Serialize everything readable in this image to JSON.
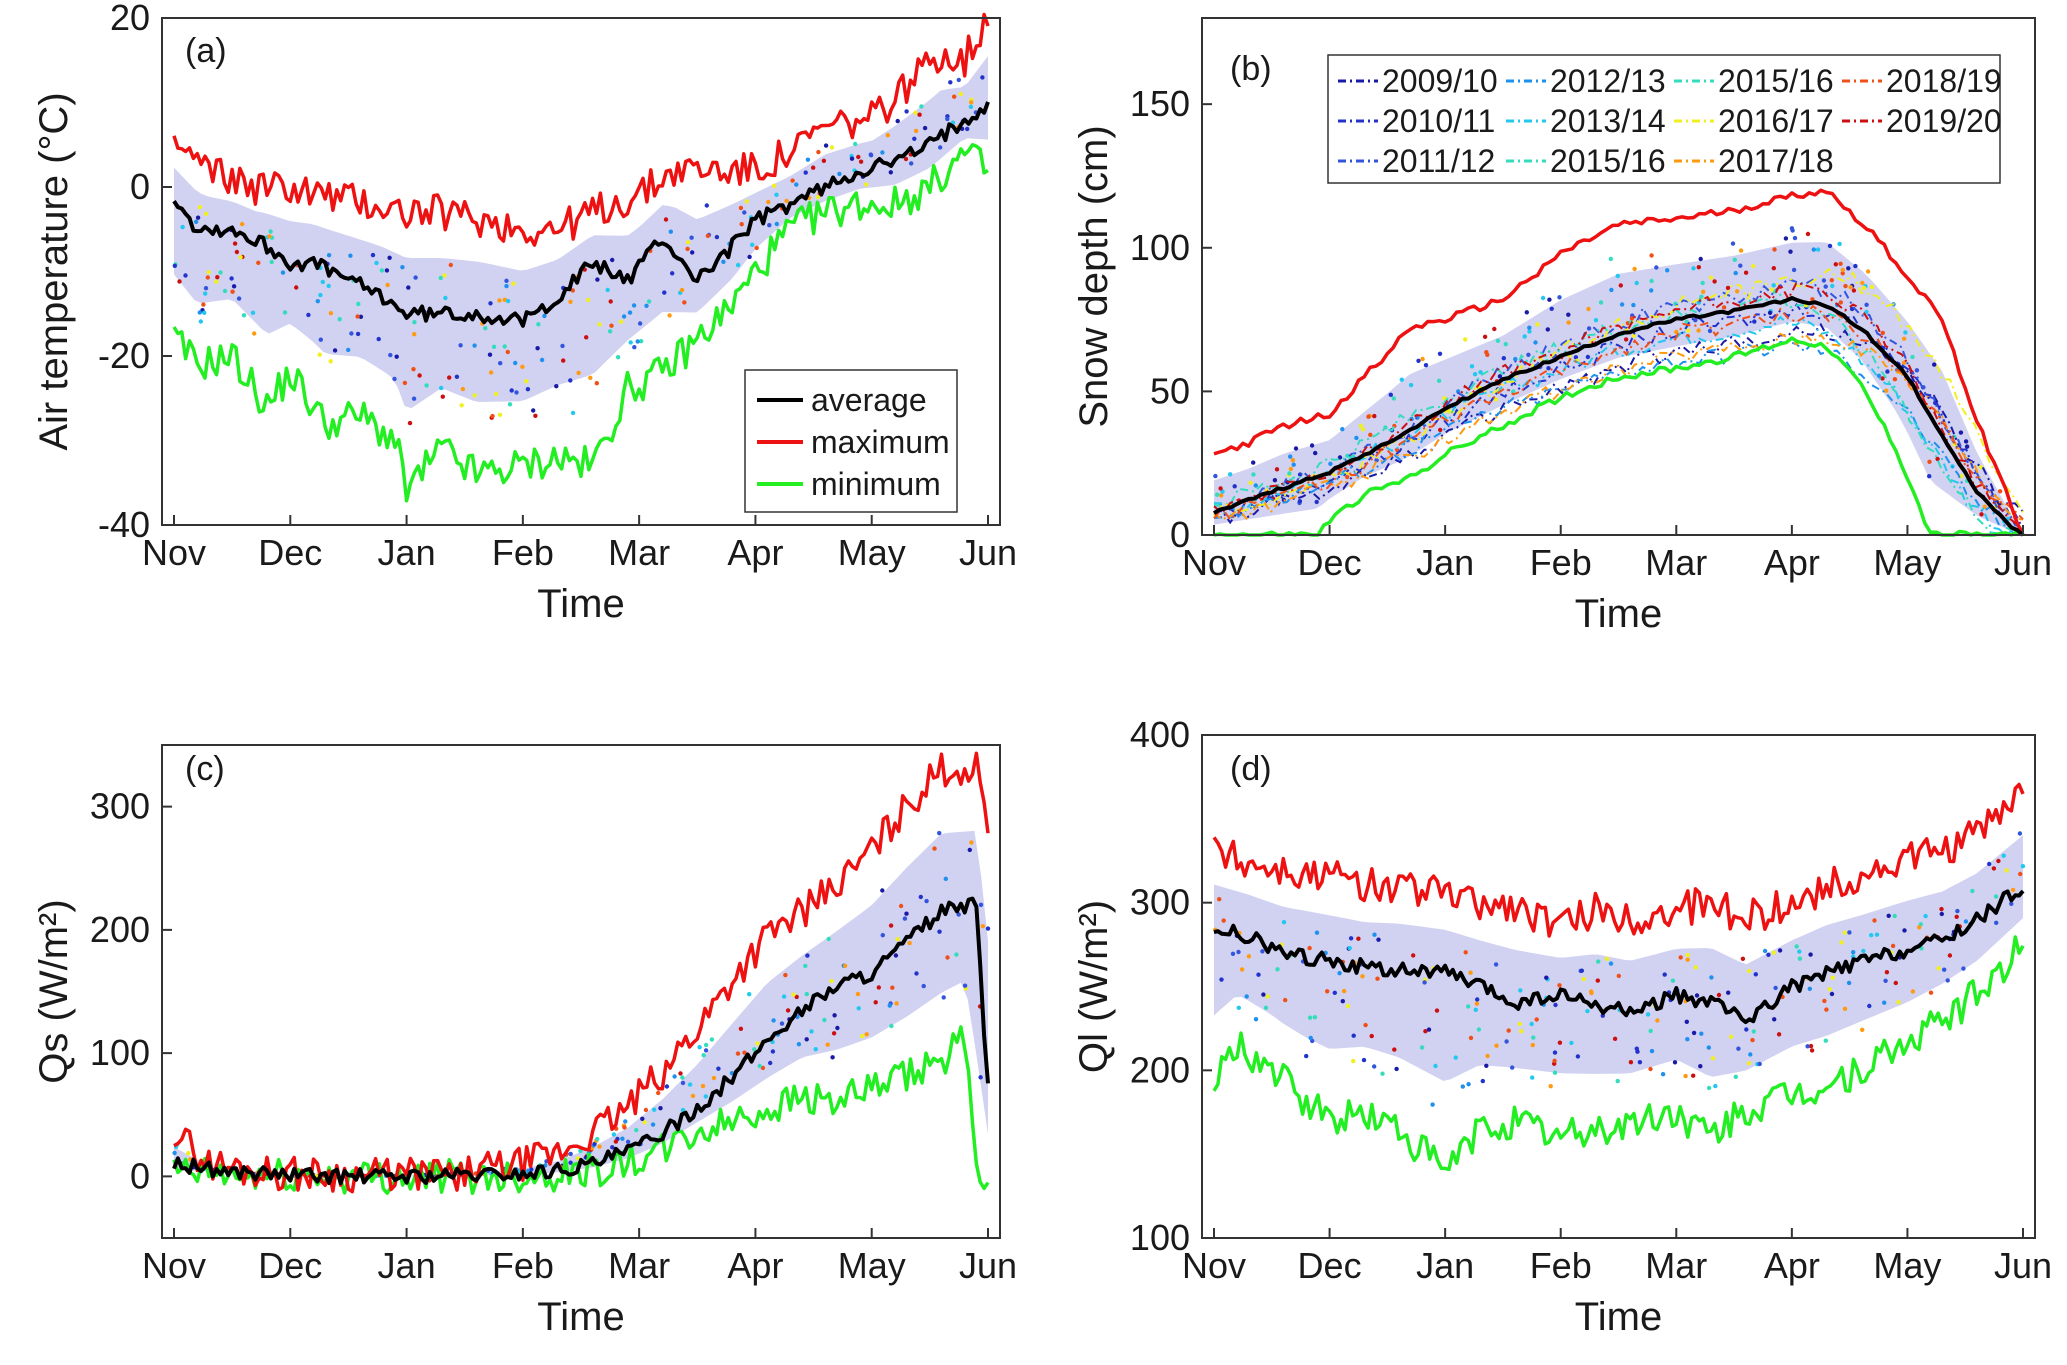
{
  "colors": {
    "average": "#000000",
    "maximum": "#ee1111",
    "minimum": "#22ee22",
    "band": "#9a9ae0",
    "years": [
      "#1a1aa8",
      "#2233cc",
      "#3355dd",
      "#1e90ee",
      "#22c8ee",
      "#33ddbb",
      "#f0f020",
      "#ff9a10",
      "#f05018",
      "#cc1010"
    ]
  },
  "chart_data": [
    {
      "id": "a",
      "type": "line",
      "panel_label": "(a)",
      "xlabel": "Time",
      "ylabel": "Air temperature (°C)",
      "xticks": [
        "Nov",
        "Dec",
        "Jan",
        "Feb",
        "Mar",
        "Apr",
        "May",
        "Jun"
      ],
      "ylim": [
        -40,
        20
      ],
      "yticks": [
        "20",
        "0",
        "-20",
        "-40"
      ],
      "legend_position": "lower-right",
      "legend": [
        "average",
        "maximum",
        "minimum"
      ],
      "series": [
        {
          "name": "average",
          "x": [
            0,
            0.2,
            0.5,
            0.8,
            1,
            1.2,
            1.5,
            1.8,
            2,
            2.3,
            2.6,
            3,
            3.3,
            3.6,
            3.9,
            4.2,
            4.5,
            4.8,
            5,
            5.3,
            5.6,
            5.9,
            6.2,
            6.5,
            6.8,
            7
          ],
          "values": [
            -1,
            -5,
            -5,
            -7,
            -9,
            -9,
            -11,
            -13,
            -15,
            -15,
            -15,
            -16,
            -13,
            -9,
            -11,
            -6,
            -11,
            -7,
            -4,
            -2,
            0,
            2,
            3,
            5,
            8,
            10
          ]
        },
        {
          "name": "maximum",
          "x": [
            0,
            0.3,
            0.7,
            1,
            1.3,
            1.7,
            2,
            2.3,
            2.7,
            3,
            3.3,
            3.6,
            4,
            4.3,
            4.7,
            5,
            5.3,
            5.6,
            6,
            6.3,
            6.6,
            6.8,
            7
          ],
          "values": [
            5,
            2,
            0,
            0,
            -1,
            -2,
            -3,
            -3,
            -4,
            -5,
            -5,
            -3,
            -1,
            2,
            2,
            2,
            4,
            7,
            8,
            12,
            16,
            15,
            20
          ]
        },
        {
          "name": "minimum",
          "x": [
            0,
            0.2,
            0.5,
            0.8,
            1,
            1.3,
            1.6,
            1.9,
            2,
            2.3,
            2.6,
            3,
            3.3,
            3.6,
            3.9,
            4.2,
            4.5,
            4.8,
            5,
            5.3,
            5.6,
            5.9,
            6.2,
            6.5,
            6.8,
            7
          ],
          "values": [
            -18,
            -21,
            -20,
            -26,
            -22,
            -28,
            -27,
            -30,
            -36,
            -31,
            -34,
            -33,
            -32,
            -33,
            -24,
            -22,
            -18,
            -14,
            -10,
            -5,
            -3,
            -2,
            -2,
            0,
            4,
            2
          ]
        }
      ]
    },
    {
      "id": "b",
      "type": "line",
      "panel_label": "(b)",
      "xlabel": "Time",
      "ylabel": "Snow depth (cm)",
      "xticks": [
        "Nov",
        "Dec",
        "Jan",
        "Feb",
        "Mar",
        "Apr",
        "May",
        "Jun"
      ],
      "ylim": [
        0,
        180
      ],
      "yticks": [
        "150",
        "100",
        "50",
        "0"
      ],
      "legend_position": "top-right",
      "legend": [
        "2009/10",
        "2012/13",
        "2015/16",
        "2018/19",
        "2010/11",
        "2013/14",
        "2016/17",
        "2019/20",
        "2011/12",
        "2015/16",
        "2017/18"
      ],
      "series": [
        {
          "name": "average",
          "x": [
            0,
            0.5,
            1,
            1.5,
            2,
            2.5,
            3,
            3.5,
            4,
            4.5,
            5,
            5.3,
            5.6,
            6,
            6.3,
            6.6,
            6.9,
            7
          ],
          "values": [
            8,
            15,
            22,
            32,
            44,
            54,
            62,
            70,
            75,
            78,
            82,
            80,
            72,
            55,
            35,
            15,
            3,
            0
          ]
        },
        {
          "name": "maximum",
          "x": [
            0,
            0.3,
            0.6,
            1,
            1.3,
            1.7,
            2,
            2.5,
            3,
            3.5,
            4,
            4.5,
            5,
            5.3,
            5.7,
            6,
            6.3,
            6.6,
            7
          ],
          "values": [
            28,
            32,
            38,
            42,
            55,
            72,
            75,
            82,
            98,
            108,
            110,
            113,
            118,
            120,
            105,
            90,
            75,
            40,
            0
          ]
        },
        {
          "name": "minimum",
          "x": [
            0,
            0.5,
            0.9,
            1,
            1.3,
            1.7,
            2,
            2.5,
            3,
            3.5,
            4,
            4.5,
            5,
            5.3,
            5.6,
            5.9,
            6.2,
            7
          ],
          "values": [
            0,
            0,
            0,
            5,
            14,
            20,
            28,
            38,
            48,
            55,
            58,
            62,
            68,
            66,
            52,
            30,
            0,
            0
          ]
        }
      ]
    },
    {
      "id": "c",
      "type": "line",
      "panel_label": "(c)",
      "xlabel": "Time",
      "ylabel": "Qs (W/m²)",
      "xticks": [
        "Nov",
        "Dec",
        "Jan",
        "Feb",
        "Mar",
        "Apr",
        "May",
        "Jun"
      ],
      "ylim": [
        -50,
        350
      ],
      "yticks": [
        "300",
        "200",
        "100",
        "0"
      ],
      "series": [
        {
          "name": "average",
          "x": [
            0,
            0.5,
            1,
            1.5,
            2,
            2.5,
            3,
            3.3,
            3.6,
            3.9,
            4.2,
            4.5,
            4.8,
            5.1,
            5.4,
            5.7,
            6,
            6.3,
            6.6,
            6.9,
            7
          ],
          "values": [
            10,
            4,
            1,
            0,
            0,
            1,
            2,
            5,
            10,
            20,
            35,
            55,
            80,
            110,
            135,
            155,
            165,
            190,
            215,
            220,
            70
          ]
        },
        {
          "name": "maximum",
          "x": [
            0,
            0.3,
            0.7,
            1,
            1.5,
            2,
            2.5,
            3,
            3.3,
            3.6,
            3.9,
            4.2,
            4.5,
            4.8,
            5.1,
            5.4,
            5.7,
            6,
            6.3,
            6.6,
            6.9,
            7
          ],
          "values": [
            35,
            10,
            4,
            2,
            1,
            1,
            3,
            10,
            18,
            35,
            55,
            85,
            120,
            160,
            195,
            215,
            235,
            265,
            300,
            330,
            330,
            290
          ]
        },
        {
          "name": "minimum",
          "x": [
            0,
            0.5,
            1,
            1.5,
            2,
            2.5,
            3,
            3.3,
            3.6,
            3.9,
            4.2,
            4.5,
            4.8,
            5.1,
            5.4,
            5.7,
            6,
            6.3,
            6.6,
            6.8,
            6.9,
            7
          ],
          "values": [
            3,
            1,
            0,
            0,
            0,
            0,
            1,
            2,
            5,
            10,
            20,
            35,
            45,
            55,
            65,
            60,
            70,
            80,
            95,
            110,
            0,
            5
          ]
        }
      ]
    },
    {
      "id": "d",
      "type": "line",
      "panel_label": "(d)",
      "xlabel": "Time",
      "ylabel": "Ql (W/m²)",
      "xticks": [
        "Nov",
        "Dec",
        "Jan",
        "Feb",
        "Mar",
        "Apr",
        "May",
        "Jun"
      ],
      "ylim": [
        100,
        400
      ],
      "yticks": [
        "400",
        "300",
        "200",
        "100"
      ],
      "series": [
        {
          "name": "average",
          "x": [
            0,
            0.3,
            0.6,
            1,
            1.3,
            1.6,
            2,
            2.3,
            2.6,
            3,
            3.3,
            3.6,
            4,
            4.3,
            4.6,
            5,
            5.3,
            5.6,
            6,
            6.3,
            6.6,
            7
          ],
          "values": [
            285,
            280,
            270,
            265,
            262,
            260,
            258,
            250,
            240,
            245,
            238,
            235,
            245,
            240,
            230,
            250,
            258,
            265,
            272,
            278,
            290,
            310
          ]
        },
        {
          "name": "maximum",
          "x": [
            0,
            0.3,
            0.6,
            1,
            1.3,
            1.6,
            2,
            2.3,
            2.6,
            3,
            3.3,
            3.6,
            4,
            4.3,
            4.6,
            5,
            5.3,
            5.6,
            6,
            6.3,
            6.6,
            7
          ],
          "values": [
            332,
            325,
            320,
            315,
            310,
            310,
            305,
            300,
            298,
            285,
            295,
            290,
            295,
            300,
            290,
            300,
            310,
            315,
            325,
            330,
            340,
            365
          ]
        },
        {
          "name": "minimum",
          "x": [
            0,
            0.2,
            0.5,
            0.8,
            1,
            1.3,
            1.6,
            2,
            2.3,
            2.6,
            3,
            3.3,
            3.6,
            4,
            4.3,
            4.6,
            5,
            5.3,
            5.6,
            6,
            6.3,
            6.6,
            7
          ],
          "values": [
            190,
            215,
            200,
            180,
            170,
            175,
            165,
            140,
            165,
            170,
            160,
            165,
            168,
            175,
            160,
            175,
            185,
            190,
            200,
            215,
            230,
            245,
            275
          ]
        }
      ]
    }
  ]
}
